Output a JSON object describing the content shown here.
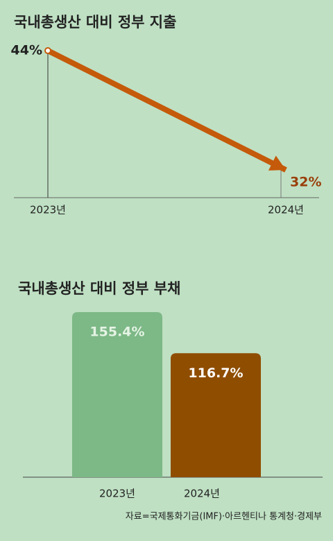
{
  "chart_data": [
    {
      "type": "line",
      "title": "국내총생산 대비 정부 지출",
      "categories": [
        "2023년",
        "2024년"
      ],
      "values": [
        44,
        32
      ],
      "value_labels": [
        "44%",
        "32%"
      ],
      "color": "#c45a0a"
    },
    {
      "type": "bar",
      "title": "국내총생산 대비 정부 부채",
      "categories": [
        "2023년",
        "2024년"
      ],
      "values": [
        155.4,
        116.7
      ],
      "value_labels": [
        "155.4%",
        "116.7%"
      ],
      "colors": [
        "#7db887",
        "#8f4d00"
      ]
    }
  ],
  "source": "자료=국제통화기금(IMF)·아르헨티나 통계청·경제부"
}
